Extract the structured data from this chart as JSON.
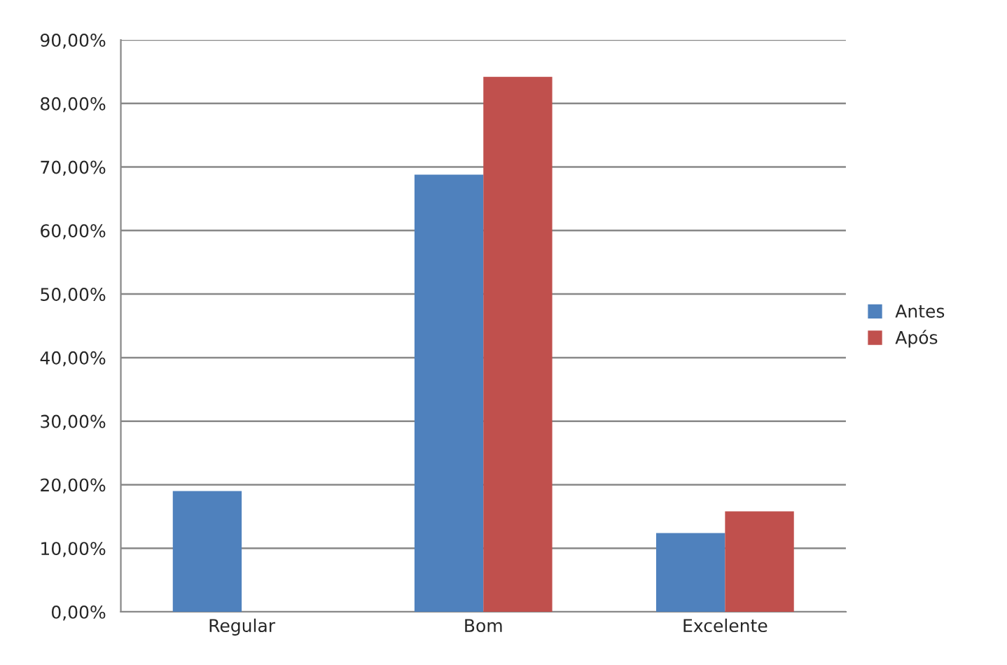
{
  "chart_data": {
    "type": "bar",
    "categories": [
      "Regular",
      "Bom",
      "Excelente"
    ],
    "series": [
      {
        "name": "Antes",
        "color": "#4f81bd",
        "values": [
          19.0,
          68.8,
          12.4
        ]
      },
      {
        "name": "Após",
        "color": "#c0504d",
        "values": [
          null,
          84.2,
          15.8
        ]
      }
    ],
    "ylim": [
      0,
      90
    ],
    "yticks": [
      {
        "value": 0,
        "label": "0,00%"
      },
      {
        "value": 10,
        "label": "10,00%"
      },
      {
        "value": 20,
        "label": "20,00%"
      },
      {
        "value": 30,
        "label": "30,00%"
      },
      {
        "value": 40,
        "label": "40,00%"
      },
      {
        "value": 50,
        "label": "50,00%"
      },
      {
        "value": 60,
        "label": "60,00%"
      },
      {
        "value": 70,
        "label": "70,00%"
      },
      {
        "value": 80,
        "label": "80,00%"
      },
      {
        "value": 90,
        "label": "90,00%"
      }
    ],
    "grid": "y",
    "legend": "right"
  }
}
